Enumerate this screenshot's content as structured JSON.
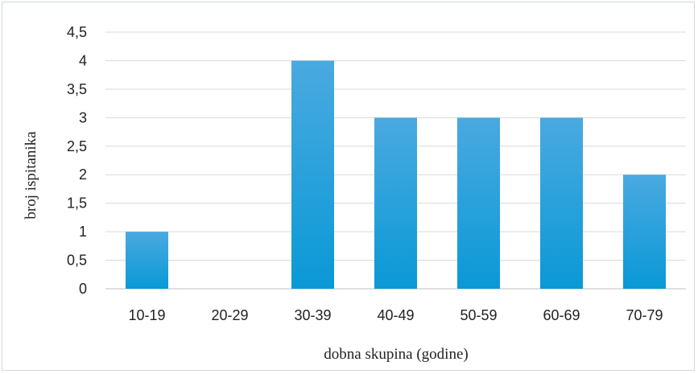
{
  "chart_data": {
    "type": "bar",
    "categories": [
      "10-19",
      "20-29",
      "30-39",
      "40-49",
      "50-59",
      "60-69",
      "70-79"
    ],
    "values": [
      1,
      0,
      4,
      3,
      3,
      3,
      2
    ],
    "xlabel": "dobna skupina (godine)",
    "ylabel": "broj ispitanika",
    "ylim": [
      0,
      4.5
    ],
    "yticks": [
      "0",
      "0,5",
      "1",
      "1,5",
      "2",
      "2,5",
      "3",
      "3,5",
      "4",
      "4,5"
    ],
    "grid": true,
    "legend": "none",
    "colors": {
      "bar_top": "#4aa9e0",
      "bar_bottom": "#0a99d6"
    }
  }
}
